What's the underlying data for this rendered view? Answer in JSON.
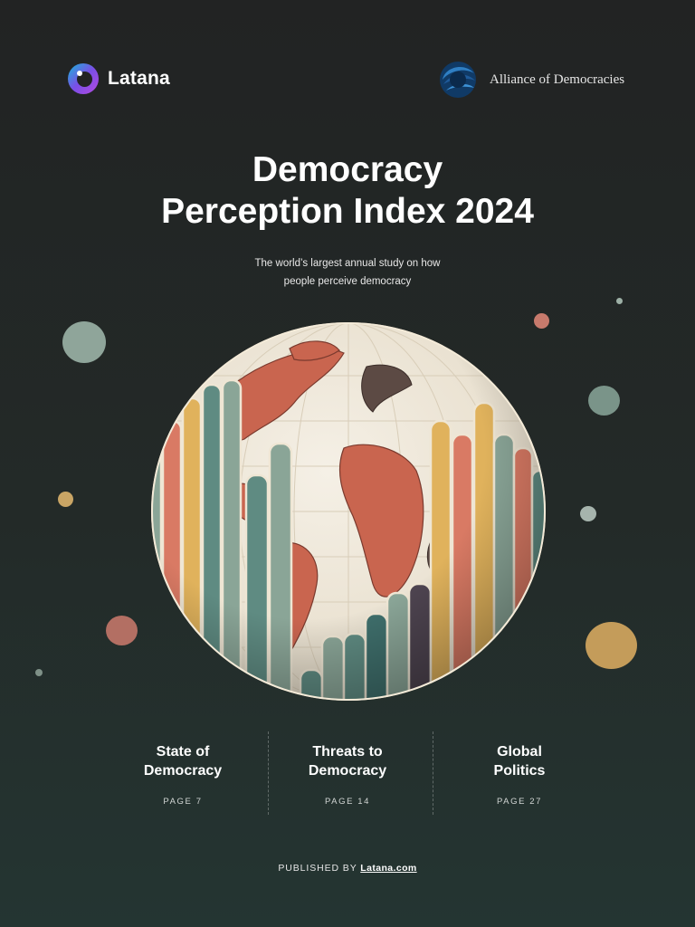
{
  "header": {
    "left_logo": {
      "name": "Latana",
      "icon": "latana-ring-icon"
    },
    "right_logo": {
      "name": "Alliance of Democracies",
      "icon": "alliance-globe-icon"
    }
  },
  "cover": {
    "title_line1": "Democracy",
    "title_line2": "Perception Index 2024",
    "subtitle_line1": "The world’s largest annual study on how",
    "subtitle_line2": "people perceive democracy"
  },
  "illustration": {
    "name": "globe-bar-chart-illustration"
  },
  "sections": [
    {
      "title_line1": "State of",
      "title_line2": "Democracy",
      "page": "PAGE  7"
    },
    {
      "title_line1": "Threats to",
      "title_line2": "Democracy",
      "page": "PAGE  14"
    },
    {
      "title_line1": "Global",
      "title_line2": "Politics",
      "page": "PAGE  27"
    }
  ],
  "footer": {
    "published_by": "PUBLISHED BY",
    "link_text": "Latana.com"
  },
  "colors": {
    "background_top": "#222323",
    "background_bottom": "#243532",
    "teal": "#5f8b82",
    "coral": "#d97a64",
    "mustard": "#e0b25c",
    "sage": "#8aa597",
    "land": "#c9654f",
    "ocean": "#f1ebdf"
  }
}
